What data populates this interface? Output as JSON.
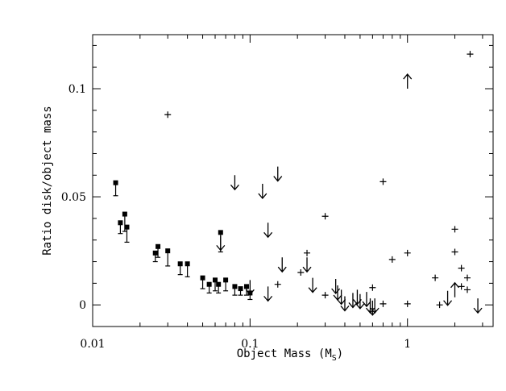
{
  "chart_data": {
    "type": "scatter",
    "xlabel": "Object Mass (M",
    "xlabel_sub": "S",
    "xlabel_end": ")",
    "ylabel": "Ratio disk/object mass",
    "x_scale": "log",
    "xlim": [
      0.01,
      3.5
    ],
    "ylim": [
      -0.01,
      0.125
    ],
    "x_major_ticks": [
      {
        "value": 0.01,
        "label": "0.01"
      },
      {
        "value": 0.1,
        "label": "0.1"
      },
      {
        "value": 1,
        "label": "1"
      }
    ],
    "y_major_ticks": [
      {
        "value": 0,
        "label": "0"
      },
      {
        "value": 0.05,
        "label": "0.05"
      },
      {
        "value": 0.1,
        "label": "0.1"
      }
    ],
    "y_minor_step": 0.01,
    "grid": false,
    "series": [
      {
        "marker": "filled-square-with-downward-error-bar",
        "points": [
          {
            "x": 0.014,
            "y": 0.0565,
            "err": 0.006
          },
          {
            "x": 0.015,
            "y": 0.038,
            "err": 0.005
          },
          {
            "x": 0.016,
            "y": 0.042,
            "err": 0.008
          },
          {
            "x": 0.0165,
            "y": 0.036,
            "err": 0.007
          },
          {
            "x": 0.025,
            "y": 0.024,
            "err": 0.004
          },
          {
            "x": 0.026,
            "y": 0.027,
            "err": 0.005
          },
          {
            "x": 0.03,
            "y": 0.025,
            "err": 0.007
          },
          {
            "x": 0.036,
            "y": 0.019,
            "err": 0.005
          },
          {
            "x": 0.04,
            "y": 0.019,
            "err": 0.006
          },
          {
            "x": 0.05,
            "y": 0.0125,
            "err": 0.005
          },
          {
            "x": 0.055,
            "y": 0.0095,
            "err": 0.004
          },
          {
            "x": 0.06,
            "y": 0.0115,
            "err": 0.005
          },
          {
            "x": 0.063,
            "y": 0.0095,
            "err": 0.004
          },
          {
            "x": 0.065,
            "y": 0.0335,
            "err": 0.009
          },
          {
            "x": 0.07,
            "y": 0.0115,
            "err": 0.005
          },
          {
            "x": 0.08,
            "y": 0.0085,
            "err": 0.004
          },
          {
            "x": 0.087,
            "y": 0.0075,
            "err": 0.003
          },
          {
            "x": 0.095,
            "y": 0.0085,
            "err": 0.004
          },
          {
            "x": 0.1,
            "y": 0.0055,
            "err": 0.003
          }
        ]
      },
      {
        "marker": "downward-arrow-upper-limit",
        "points": [
          {
            "x": 0.08,
            "y": 0.06
          },
          {
            "x": 0.12,
            "y": 0.056
          },
          {
            "x": 0.15,
            "y": 0.064
          },
          {
            "x": 0.13,
            "y": 0.038
          },
          {
            "x": 0.16,
            "y": 0.022
          },
          {
            "x": 0.23,
            "y": 0.022
          },
          {
            "x": 0.25,
            "y": 0.0125
          },
          {
            "x": 0.13,
            "y": 0.0085
          },
          {
            "x": 0.1,
            "y": 0.0115
          },
          {
            "x": 0.065,
            "y": 0.032
          },
          {
            "x": 0.35,
            "y": 0.012
          },
          {
            "x": 0.36,
            "y": 0.009
          },
          {
            "x": 0.38,
            "y": 0.007
          },
          {
            "x": 0.4,
            "y": 0.004
          },
          {
            "x": 0.45,
            "y": 0.0055
          },
          {
            "x": 0.48,
            "y": 0.007
          },
          {
            "x": 0.5,
            "y": 0.005
          },
          {
            "x": 0.55,
            "y": 0.006
          },
          {
            "x": 0.58,
            "y": 0.003
          },
          {
            "x": 0.6,
            "y": 0.002
          },
          {
            "x": 0.62,
            "y": 0.003
          },
          {
            "x": 1.8,
            "y": 0.0065
          },
          {
            "x": 2.8,
            "y": 0.003
          }
        ]
      },
      {
        "marker": "upward-arrow-lower-limit",
        "points": [
          {
            "x": 1.0,
            "y": 0.1
          },
          {
            "x": 2.0,
            "y": 0.0035
          }
        ]
      },
      {
        "marker": "cross",
        "points": [
          {
            "x": 0.03,
            "y": 0.088
          },
          {
            "x": 0.15,
            "y": 0.0095
          },
          {
            "x": 0.21,
            "y": 0.015
          },
          {
            "x": 0.23,
            "y": 0.024
          },
          {
            "x": 0.3,
            "y": 0.041
          },
          {
            "x": 0.3,
            "y": 0.0045
          },
          {
            "x": 0.6,
            "y": 0.008
          },
          {
            "x": 0.7,
            "y": 0.057
          },
          {
            "x": 0.7,
            "y": 0.0005
          },
          {
            "x": 0.8,
            "y": 0.021
          },
          {
            "x": 1.0,
            "y": 0.024
          },
          {
            "x": 1.0,
            "y": 0.0005
          },
          {
            "x": 1.5,
            "y": 0.0125
          },
          {
            "x": 1.6,
            "y": 0.0
          },
          {
            "x": 2.0,
            "y": 0.035
          },
          {
            "x": 2.0,
            "y": 0.0245
          },
          {
            "x": 2.2,
            "y": 0.017
          },
          {
            "x": 2.2,
            "y": 0.0085
          },
          {
            "x": 2.4,
            "y": 0.0125
          },
          {
            "x": 2.4,
            "y": 0.007
          },
          {
            "x": 2.5,
            "y": 0.116
          }
        ]
      }
    ]
  }
}
